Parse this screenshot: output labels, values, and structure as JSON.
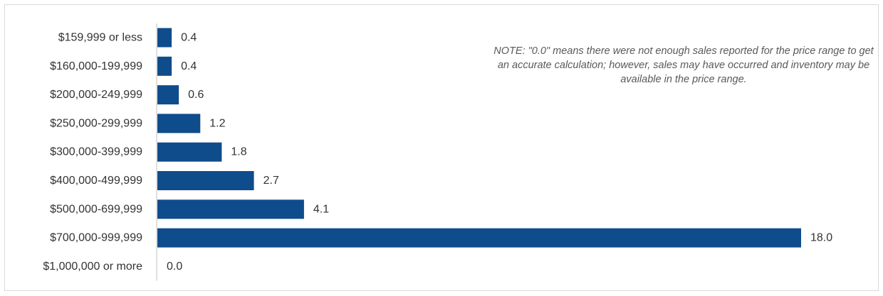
{
  "note": "NOTE: \"0.0\" means there were not enough sales reported for the price range to get an accurate calculation;  however, sales may have occurred and inventory may be available in the price range.",
  "colors": {
    "bar": "#0f4c8c",
    "axis": "#bfbfbf",
    "text": "#333333"
  },
  "chart_data": {
    "type": "bar",
    "orientation": "horizontal",
    "categories": [
      "$159,999 or less",
      "$160,000-199,999",
      "$200,000-249,999",
      "$250,000-299,999",
      "$300,000-399,999",
      "$400,000-499,999",
      "$500,000-699,999",
      "$700,000-999,999",
      "$1,000,000 or more"
    ],
    "values": [
      0.4,
      0.4,
      0.6,
      1.2,
      1.8,
      2.7,
      4.1,
      18.0,
      0.0
    ],
    "value_labels": [
      "0.4",
      "0.4",
      "0.6",
      "1.2",
      "1.8",
      "2.7",
      "4.1",
      "18.0",
      "0.0"
    ],
    "title": "",
    "xlabel": "",
    "ylabel": "",
    "xlim": [
      0,
      18.0
    ],
    "grid": false,
    "legend": "none"
  }
}
